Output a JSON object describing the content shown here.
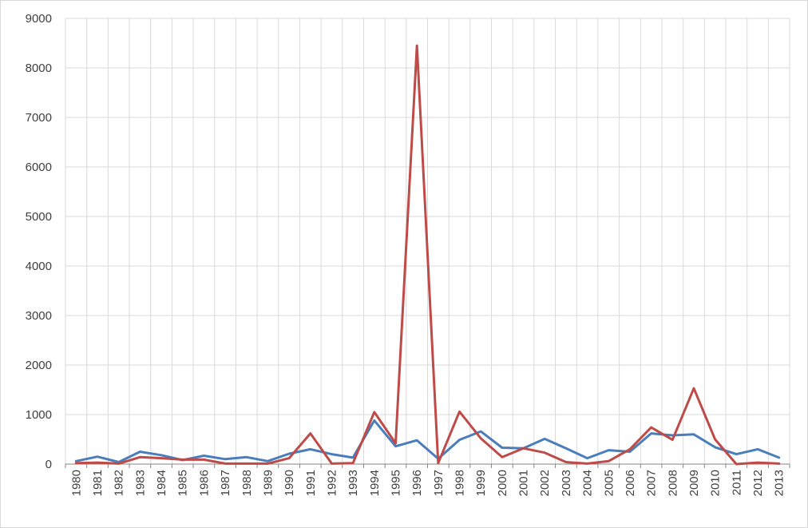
{
  "chart_data": {
    "type": "line",
    "title": "",
    "xlabel": "",
    "ylabel": "",
    "ylim": [
      0,
      9000
    ],
    "yticks": [
      0,
      1000,
      2000,
      3000,
      4000,
      5000,
      6000,
      7000,
      8000,
      9000
    ],
    "grid": "on",
    "legend": "none",
    "categories": [
      "1980",
      "1981",
      "1982",
      "1983",
      "1984",
      "1985",
      "1986",
      "1987",
      "1988",
      "1989",
      "1990",
      "1991",
      "1992",
      "1993",
      "1994",
      "1995",
      "1996",
      "1997",
      "1998",
      "1999",
      "2000",
      "2001",
      "2002",
      "2003",
      "2004",
      "2005",
      "2006",
      "2007",
      "2008",
      "2009",
      "2010",
      "2011",
      "2012",
      "2013"
    ],
    "series": [
      {
        "color": "#4a7ebb",
        "values": [
          60,
          150,
          40,
          250,
          180,
          80,
          170,
          100,
          140,
          60,
          210,
          300,
          200,
          130,
          880,
          360,
          480,
          110,
          490,
          660,
          330,
          320,
          510,
          320,
          120,
          280,
          250,
          620,
          580,
          600,
          340,
          200,
          300,
          130
        ]
      },
      {
        "color": "#be4b48",
        "values": [
          20,
          30,
          10,
          140,
          120,
          90,
          90,
          10,
          10,
          10,
          120,
          620,
          10,
          20,
          1050,
          420,
          8450,
          20,
          1060,
          520,
          140,
          320,
          230,
          40,
          10,
          60,
          300,
          740,
          490,
          1530,
          500,
          0,
          30,
          10
        ]
      }
    ]
  }
}
